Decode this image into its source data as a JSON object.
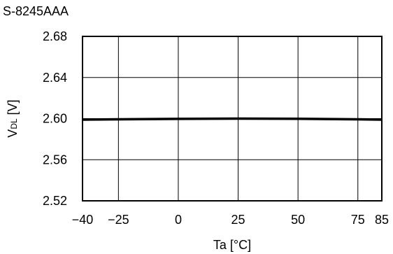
{
  "chart_data": {
    "type": "line",
    "title": "S-8245AAA",
    "xlabel": "Ta [°C]",
    "ylabel_main": "V",
    "ylabel_sub": "DL",
    "ylabel_unit": " [V]",
    "xlim": [
      -40,
      85
    ],
    "ylim": [
      2.52,
      2.68
    ],
    "xticks": [
      -40,
      -25,
      0,
      25,
      50,
      75,
      85
    ],
    "xtick_labels": [
      "−40",
      "−25",
      "0",
      "25",
      "50",
      "75",
      "85"
    ],
    "yticks": [
      2.52,
      2.56,
      2.6,
      2.64,
      2.68
    ],
    "ytick_labels": [
      "2.52",
      "2.56",
      "2.60",
      "2.64",
      "2.68"
    ],
    "grid": true,
    "series": [
      {
        "x": [
          -40,
          -25,
          0,
          25,
          50,
          75,
          85
        ],
        "y": [
          2.599,
          2.5993,
          2.5997,
          2.6,
          2.5998,
          2.5993,
          2.599
        ]
      }
    ]
  }
}
